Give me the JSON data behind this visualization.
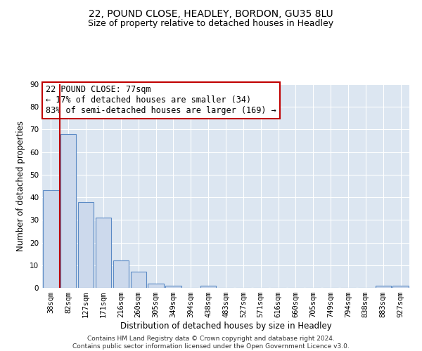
{
  "title": "22, POUND CLOSE, HEADLEY, BORDON, GU35 8LU",
  "subtitle": "Size of property relative to detached houses in Headley",
  "xlabel": "Distribution of detached houses by size in Headley",
  "ylabel": "Number of detached properties",
  "categories": [
    "38sqm",
    "82sqm",
    "127sqm",
    "171sqm",
    "216sqm",
    "260sqm",
    "305sqm",
    "349sqm",
    "394sqm",
    "438sqm",
    "483sqm",
    "527sqm",
    "571sqm",
    "616sqm",
    "660sqm",
    "705sqm",
    "749sqm",
    "794sqm",
    "838sqm",
    "883sqm",
    "927sqm"
  ],
  "values": [
    43,
    68,
    38,
    31,
    12,
    7,
    2,
    1,
    0,
    1,
    0,
    0,
    0,
    0,
    0,
    0,
    0,
    0,
    0,
    1,
    1
  ],
  "bar_color": "#ccd9ec",
  "bar_edge_color": "#5b8ac5",
  "vline_color": "#c00000",
  "annotation_text": "22 POUND CLOSE: 77sqm\n← 17% of detached houses are smaller (34)\n83% of semi-detached houses are larger (169) →",
  "annotation_box_color": "#ffffff",
  "annotation_box_edge": "#c00000",
  "ylim": [
    0,
    90
  ],
  "yticks": [
    0,
    10,
    20,
    30,
    40,
    50,
    60,
    70,
    80,
    90
  ],
  "plot_bg_color": "#dce6f1",
  "footer": "Contains HM Land Registry data © Crown copyright and database right 2024.\nContains public sector information licensed under the Open Government Licence v3.0.",
  "title_fontsize": 10,
  "subtitle_fontsize": 9,
  "xlabel_fontsize": 8.5,
  "ylabel_fontsize": 8.5,
  "tick_fontsize": 7.5,
  "annotation_fontsize": 8.5,
  "footer_fontsize": 6.5
}
